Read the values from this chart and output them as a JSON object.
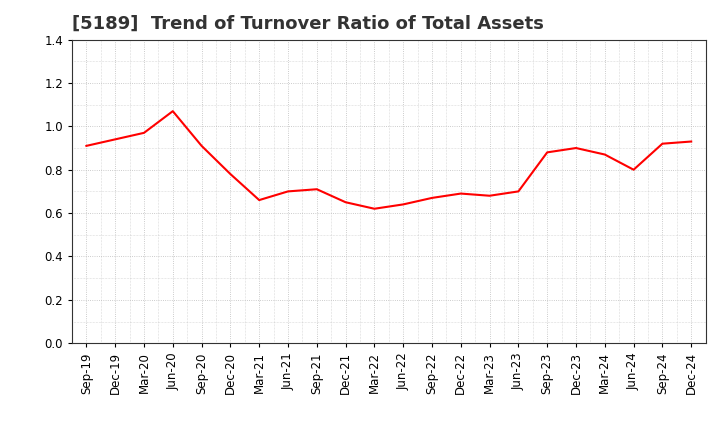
{
  "title": "[5189]  Trend of Turnover Ratio of Total Assets",
  "x_labels": [
    "Sep-19",
    "Dec-19",
    "Mar-20",
    "Jun-20",
    "Sep-20",
    "Dec-20",
    "Mar-21",
    "Jun-21",
    "Sep-21",
    "Dec-21",
    "Mar-22",
    "Jun-22",
    "Sep-22",
    "Dec-22",
    "Mar-23",
    "Jun-23",
    "Sep-23",
    "Dec-23",
    "Mar-24",
    "Jun-24",
    "Sep-24",
    "Dec-24"
  ],
  "y_values": [
    0.91,
    0.94,
    0.97,
    1.07,
    0.91,
    0.78,
    0.66,
    0.7,
    0.71,
    0.65,
    0.62,
    0.64,
    0.67,
    0.69,
    0.68,
    0.7,
    0.88,
    0.9,
    0.87,
    0.8,
    0.92,
    0.93
  ],
  "line_color": "#FF0000",
  "ylim": [
    0.0,
    1.4
  ],
  "yticks": [
    0.0,
    0.2,
    0.4,
    0.6,
    0.8,
    1.0,
    1.2,
    1.4
  ],
  "background_color": "#ffffff",
  "grid_color": "#bbbbbb",
  "title_fontsize": 13,
  "tick_fontsize": 8.5,
  "line_width": 1.5,
  "title_color": "#333333"
}
